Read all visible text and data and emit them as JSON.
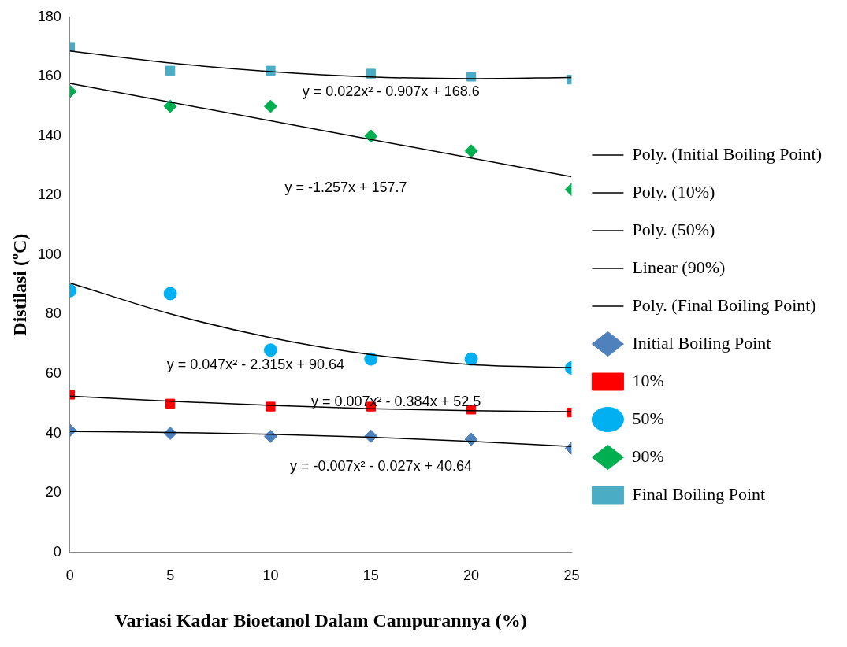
{
  "chart_data": {
    "type": "scatter",
    "xlabel": "Variasi Kadar Bioetanol Dalam Campurannya (%)",
    "ylabel": "Distilasi (ºC)",
    "xlim": [
      0,
      25
    ],
    "xticks": [
      0,
      5,
      10,
      15,
      20,
      25
    ],
    "ylim": [
      0,
      180
    ],
    "yticks": [
      0,
      20,
      40,
      60,
      80,
      100,
      120,
      140,
      160,
      180
    ],
    "grid": false,
    "legend": "right",
    "x": [
      0,
      5,
      10,
      15,
      20,
      25
    ],
    "series": [
      {
        "name": "Initial Boiling Point",
        "color": "#4f81bd",
        "marker": "diamond",
        "values": [
          41,
          40,
          39,
          39,
          38,
          35
        ]
      },
      {
        "name": "10%",
        "color": "#ff0000",
        "marker": "square",
        "values": [
          53,
          50,
          49,
          49,
          48,
          47
        ]
      },
      {
        "name": "50%",
        "color": "#00b0f0",
        "marker": "circle",
        "values": [
          88,
          87,
          68,
          65,
          65,
          62
        ]
      },
      {
        "name": "90%",
        "color": "#00b050",
        "marker": "diamond",
        "values": [
          155,
          150,
          150,
          140,
          135,
          122
        ]
      },
      {
        "name": "Final Boiling Point",
        "color": "#4bacc6",
        "marker": "square",
        "values": [
          170,
          162,
          162,
          161,
          160,
          159
        ]
      },
      {
        "name": "Poly. (Initial Boiling Point)",
        "type": "line",
        "color": "#000000",
        "marker": "none",
        "values": [
          40.6,
          40.3,
          39.7,
          38.7,
          37.3,
          35.6
        ]
      },
      {
        "name": "Poly. (10%)",
        "type": "line",
        "color": "#000000",
        "marker": "none",
        "values": [
          52.5,
          50.8,
          49.4,
          48.3,
          47.6,
          47.3
        ]
      },
      {
        "name": "Poly. (50%)",
        "type": "line",
        "color": "#000000",
        "marker": "none",
        "values": [
          90.6,
          80.2,
          72.2,
          66.5,
          63.1,
          62.1
        ]
      },
      {
        "name": "Linear (90%)",
        "type": "line",
        "color": "#000000",
        "marker": "none",
        "x": [
          0,
          25
        ],
        "values": [
          157.7,
          126.3
        ]
      },
      {
        "name": "Poly. (Final Boiling Point)",
        "type": "line",
        "color": "#000000",
        "marker": "none",
        "values": [
          168.6,
          164.6,
          161.7,
          159.9,
          159.3,
          159.7
        ]
      }
    ],
    "annotations": [
      "y = 0.022x² - 0.907x + 168.6",
      "y = -1.257x + 157.7",
      "y = 0.047x² - 2.315x + 90.64",
      "y = 0.007x² - 0.384x + 52.5",
      "y = -0.007x² - 0.027x + 40.64"
    ]
  }
}
